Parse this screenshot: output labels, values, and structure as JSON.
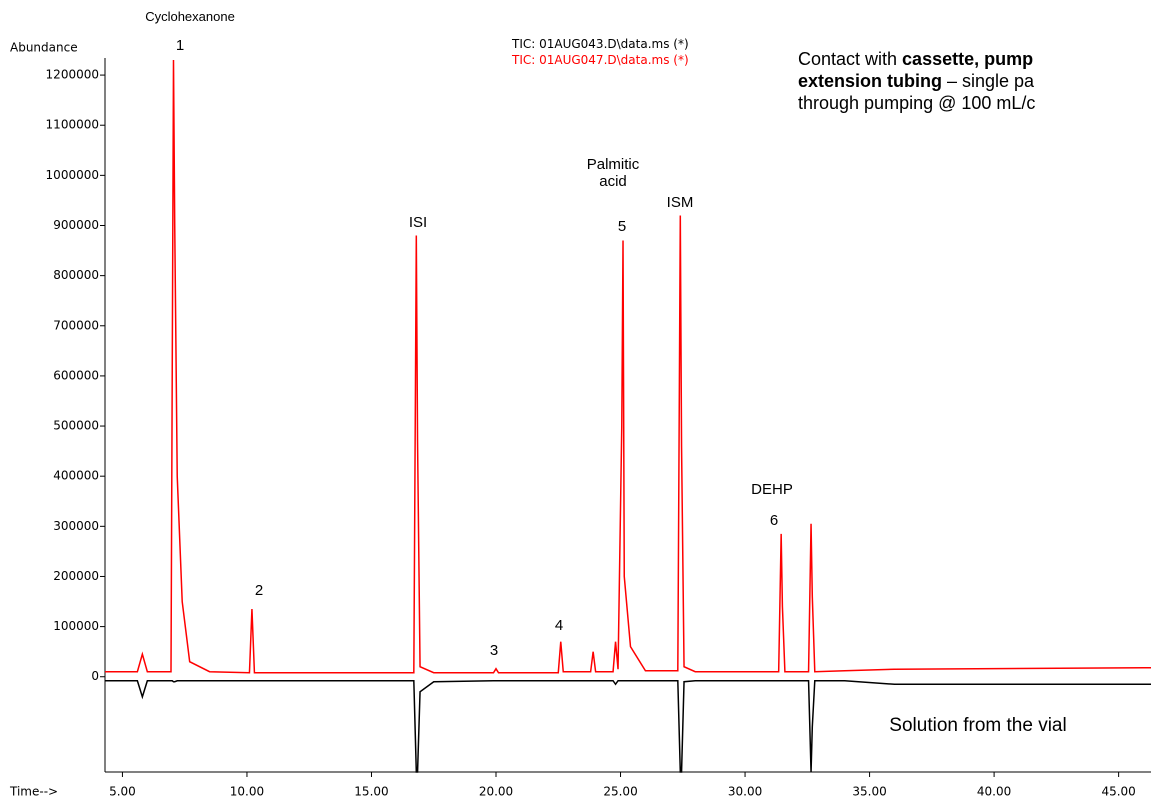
{
  "chart_data": {
    "type": "line",
    "y_label": "Abundance",
    "x_label": "Time-->",
    "x": [
      4.3,
      5.6,
      5.8,
      6.0,
      6.95,
      7.0,
      7.05,
      7.1,
      7.2,
      7.4,
      7.7,
      8.5,
      10.1,
      10.2,
      10.3,
      16.7,
      16.8,
      16.85,
      16.95,
      17.5,
      19.9,
      20.0,
      20.1,
      22.5,
      22.6,
      22.7,
      23.8,
      23.9,
      24.0,
      24.7,
      24.8,
      24.9,
      25.05,
      25.1,
      25.15,
      25.4,
      26.0,
      27.3,
      27.4,
      27.45,
      27.55,
      28.0,
      31.35,
      31.45,
      31.5,
      31.6,
      32.55,
      32.65,
      32.7,
      32.8,
      34.0,
      36.0,
      46.3
    ],
    "series": [
      {
        "name": "TIC: 01AUG043.D\\data.ms (*)",
        "color": "#000000",
        "values": [
          -8000,
          -8000,
          -40000,
          -8000,
          -8000,
          -8000,
          -10000,
          -10000,
          -8000,
          -8000,
          -8000,
          -8000,
          -8000,
          -8000,
          -8000,
          -8000,
          -190000,
          -190000,
          -30000,
          -10000,
          -8000,
          -8000,
          -8000,
          -8000,
          -8000,
          -8000,
          -8000,
          -8000,
          -8000,
          -8000,
          -15000,
          -8000,
          -8000,
          -8000,
          -8000,
          -8000,
          -8000,
          -8000,
          -190000,
          -190000,
          -10000,
          -8000,
          -8000,
          -8000,
          -8000,
          -8000,
          -8000,
          -190000,
          -100000,
          -8000,
          -8000,
          -15000,
          -15000
        ]
      },
      {
        "name": "TIC: 01AUG047.D\\data.ms (*)",
        "color": "#ff0000",
        "values": [
          10000,
          10000,
          45000,
          10000,
          10000,
          610000,
          1230000,
          900000,
          400000,
          150000,
          30000,
          10000,
          8000,
          135000,
          8000,
          8000,
          880000,
          470000,
          20000,
          8000,
          8000,
          16000,
          8000,
          8000,
          70000,
          10000,
          10000,
          50000,
          10000,
          10000,
          70000,
          15000,
          500000,
          870000,
          200000,
          60000,
          12000,
          12000,
          920000,
          460000,
          20000,
          10000,
          10000,
          285000,
          140000,
          10000,
          10000,
          305000,
          160000,
          10000,
          12000,
          15000,
          18000
        ]
      }
    ],
    "xlim": [
      4.3,
      46.3
    ],
    "ylim": [
      -190000,
      1260000
    ],
    "xticks": [
      {
        "value": 5,
        "label": "5.00"
      },
      {
        "value": 10,
        "label": "10.00"
      },
      {
        "value": 15,
        "label": "15.00"
      },
      {
        "value": 20,
        "label": "20.00"
      },
      {
        "value": 25,
        "label": "25.00"
      },
      {
        "value": 30,
        "label": "30.00"
      },
      {
        "value": 35,
        "label": "35.00"
      },
      {
        "value": 40,
        "label": "40.00"
      },
      {
        "value": 45,
        "label": "45.00"
      }
    ],
    "yticks": [
      0,
      100000,
      200000,
      300000,
      400000,
      500000,
      600000,
      700000,
      800000,
      900000,
      1000000,
      1100000,
      1200000
    ],
    "annotations": [
      "Cyclohexanone",
      "1",
      "2",
      "ISI",
      "3",
      "4",
      "Palmitic acid",
      "5",
      "ISM",
      "DEHP",
      "6",
      "Solution from the vial"
    ],
    "note_lines": [
      [
        "Contact with ",
        "cassette, pump"
      ],
      [
        "extension tubing",
        " – single pa"
      ],
      [
        "through pumping @ 100 mL/c"
      ]
    ]
  }
}
